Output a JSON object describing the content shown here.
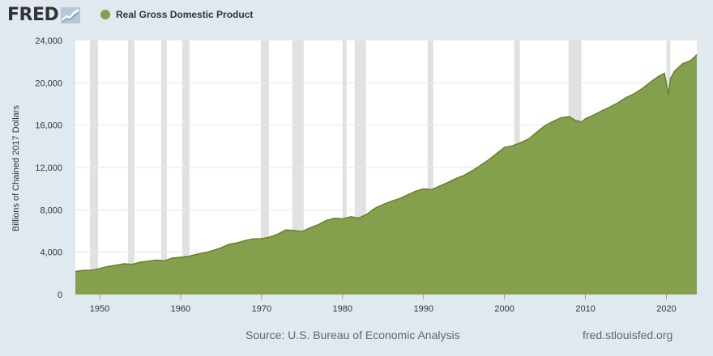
{
  "header": {
    "logo_text": "FRED",
    "logo_icon": "chart-trend-icon",
    "legend_label": "Real Gross Domestic Product"
  },
  "colors": {
    "series": "#85a04c",
    "series_line": "#68802c",
    "recession": "#e1e1e1",
    "background": "#e1e9f0",
    "plot_background": "#ffffff",
    "grid": "#e6e6e6"
  },
  "footer": {
    "source": "Source: U.S. Bureau of Economic Analysis",
    "site": "fred.stlouisfed.org"
  },
  "chart_data": {
    "type": "area",
    "title": "",
    "ylabel": "Billions of Chained 2017 Dollars",
    "xlim": [
      1947.0,
      2023.75
    ],
    "ylim": [
      0,
      24000
    ],
    "x_ticks": [
      {
        "value": 1950,
        "label": "1950"
      },
      {
        "value": 1960,
        "label": "1960"
      },
      {
        "value": 1970,
        "label": "1970"
      },
      {
        "value": 1980,
        "label": "1980"
      },
      {
        "value": 1990,
        "label": "1990"
      },
      {
        "value": 2000,
        "label": "2000"
      },
      {
        "value": 2010,
        "label": "2010"
      },
      {
        "value": 2020,
        "label": "2020"
      }
    ],
    "y_ticks": [
      {
        "value": 0,
        "label": "0"
      },
      {
        "value": 4000,
        "label": "4,000"
      },
      {
        "value": 8000,
        "label": "8,000"
      },
      {
        "value": 12000,
        "label": "12,000"
      },
      {
        "value": 16000,
        "label": "16,000"
      },
      {
        "value": 20000,
        "label": "20,000"
      },
      {
        "value": 24000,
        "label": "24,000"
      }
    ],
    "grid": true,
    "recessions": [
      [
        1948.8,
        1949.8
      ],
      [
        1953.5,
        1954.3
      ],
      [
        1957.6,
        1958.3
      ],
      [
        1960.2,
        1961.1
      ],
      [
        1969.9,
        1970.9
      ],
      [
        1973.8,
        1975.2
      ],
      [
        1980.0,
        1980.5
      ],
      [
        1981.5,
        1982.9
      ],
      [
        1990.5,
        1991.2
      ],
      [
        2001.2,
        2001.9
      ],
      [
        2007.9,
        2009.5
      ],
      [
        2020.0,
        2020.5
      ]
    ],
    "series": [
      {
        "name": "Real Gross Domestic Product",
        "x": [
          1947,
          1948,
          1949,
          1950,
          1951,
          1952,
          1953,
          1954,
          1955,
          1956,
          1957,
          1958,
          1959,
          1960,
          1961,
          1962,
          1963,
          1964,
          1965,
          1966,
          1967,
          1968,
          1969,
          1970,
          1971,
          1972,
          1973,
          1974,
          1975,
          1976,
          1977,
          1978,
          1979,
          1980,
          1981,
          1982,
          1983,
          1984,
          1985,
          1986,
          1987,
          1988,
          1989,
          1990,
          1991,
          1992,
          1993,
          1994,
          1995,
          1996,
          1997,
          1998,
          1999,
          2000,
          2001,
          2002,
          2003,
          2004,
          2005,
          2006,
          2007,
          2008,
          2008.75,
          2009.5,
          2010,
          2011,
          2012,
          2013,
          2014,
          2015,
          2016,
          2017,
          2018,
          2019,
          2019.75,
          2020.25,
          2020.5,
          2021,
          2022,
          2023,
          2023.75
        ],
        "values": [
          2180,
          2280,
          2280,
          2450,
          2650,
          2760,
          2900,
          2850,
          3050,
          3150,
          3250,
          3180,
          3450,
          3520,
          3600,
          3800,
          3950,
          4150,
          4420,
          4750,
          4880,
          5100,
          5250,
          5270,
          5430,
          5700,
          6100,
          6050,
          5950,
          6300,
          6600,
          7000,
          7200,
          7150,
          7350,
          7220,
          7580,
          8150,
          8500,
          8800,
          9050,
          9400,
          9750,
          9980,
          9900,
          10250,
          10580,
          10950,
          11250,
          11680,
          12180,
          12700,
          13300,
          13900,
          14050,
          14350,
          14700,
          15350,
          15950,
          16350,
          16700,
          16800,
          16450,
          16300,
          16600,
          16950,
          17350,
          17700,
          18100,
          18600,
          18950,
          19450,
          20050,
          20600,
          20900,
          18900,
          20400,
          21100,
          21800,
          22100,
          22650
        ]
      }
    ]
  }
}
